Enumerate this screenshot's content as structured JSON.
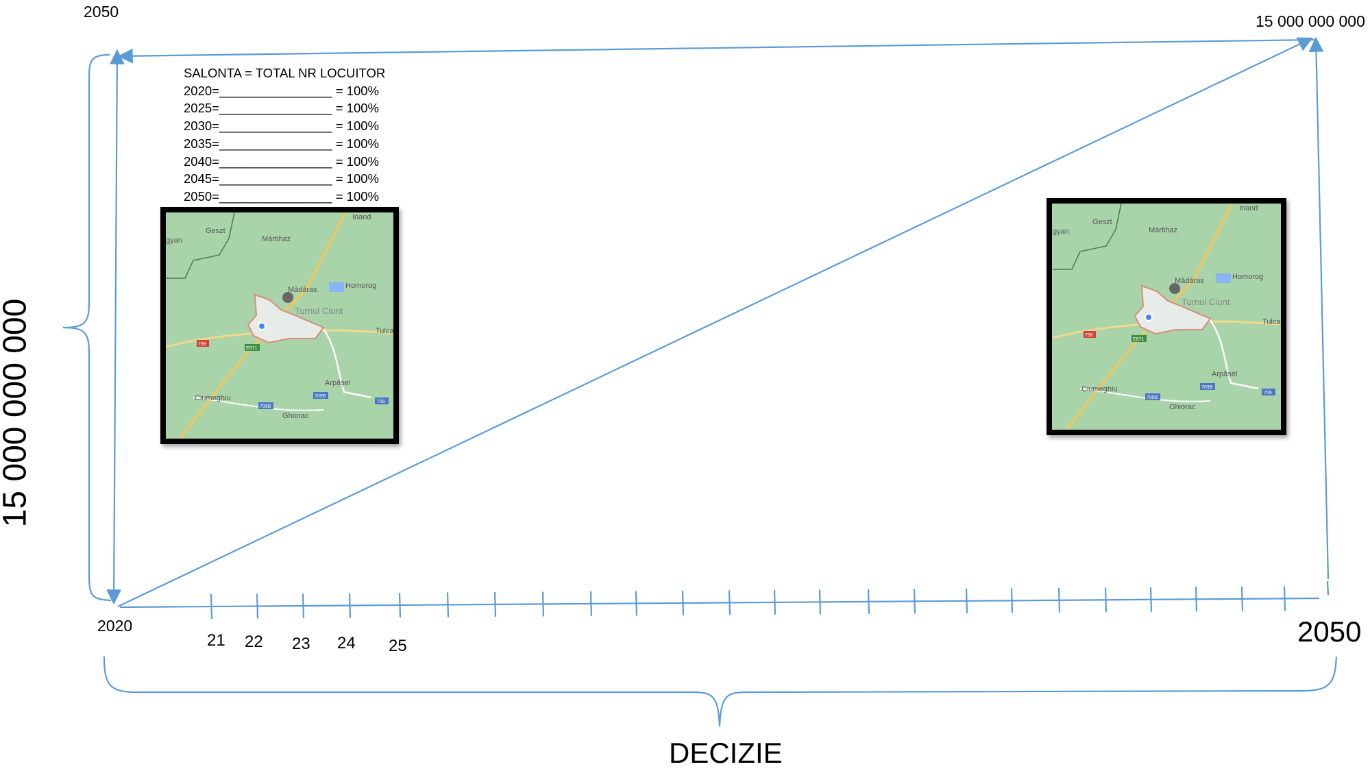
{
  "top_left_year": "2050",
  "top_right_value": "15 000 000 000",
  "y_axis_label": "15 000 000 000",
  "x_start_label": "2020",
  "x_end_label": "2050",
  "x_ticks": [
    "21",
    "22",
    "23",
    "24",
    "25"
  ],
  "bottom_label": "DECIZIE",
  "table": {
    "title": "SALONTA = TOTAL NR LOCUITOR",
    "rows": [
      {
        "label": "2020=________________ = 100%"
      },
      {
        "label": "2025=________________ = 100%"
      },
      {
        "label": "2030=________________ = 100%"
      },
      {
        "label": "2035=________________ = 100%"
      },
      {
        "label": "2040=________________ = 100%"
      },
      {
        "label": "2045=________________ = 100%"
      },
      {
        "label": "2050=________________ = 100%"
      }
    ]
  },
  "map": {
    "places": [
      "Geszt",
      "Mártihaz",
      "Inand",
      "Mădăras",
      "Homorog",
      "Turnul Ciunt",
      "Tulca",
      "Arpășel",
      "Ciumeghiu",
      "Ghiorac"
    ],
    "road_badges": [
      "798",
      "E671",
      "709B",
      "709B",
      "709"
    ],
    "left_edge_text": "gyan"
  },
  "colors": {
    "line": "#5b9bd5",
    "map_bg": "#a9d3a8",
    "frame": "#000000"
  }
}
